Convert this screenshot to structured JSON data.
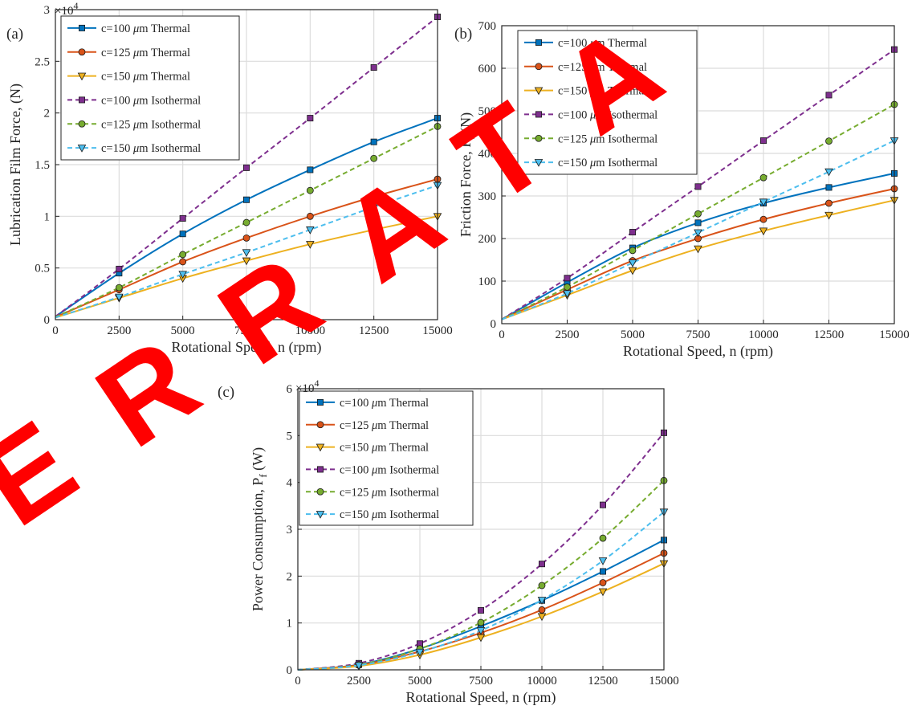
{
  "watermark": {
    "text": "ERRATA",
    "color": "#ff0000"
  },
  "chart_data": [
    {
      "type": "line",
      "panel_label": "(a)",
      "title": "",
      "xlabel": "Rotational Speed, n (rpm)",
      "ylabel": "Lubrication Film Force, (N)",
      "y_exponent": "4",
      "x_ticks": [
        "0",
        "2500",
        "5000",
        "7500",
        "10000",
        "12500",
        "15000"
      ],
      "y_ticks": [
        "0",
        "0.5",
        "1",
        "1.5",
        "2",
        "2.5",
        "3"
      ],
      "xlim": [
        0,
        15000
      ],
      "ylim": [
        0,
        30000
      ],
      "grid": true,
      "legend_position": "top-left",
      "x": [
        0,
        2500,
        5000,
        7500,
        10000,
        12500,
        15000
      ],
      "series": [
        {
          "name": "c=100 ",
          "suffix": " Thermal",
          "color": "#0072BD",
          "dash": "solid",
          "marker": "square",
          "values": [
            300,
            4500,
            8300,
            11600,
            14500,
            17200,
            19500
          ]
        },
        {
          "name": "c=125 ",
          "suffix": " Thermal",
          "color": "#D95319",
          "dash": "solid",
          "marker": "circle",
          "values": [
            250,
            2900,
            5600,
            7900,
            10000,
            11900,
            13600
          ]
        },
        {
          "name": "c=150 ",
          "suffix": " Thermal",
          "color": "#EDB120",
          "dash": "solid",
          "marker": "triangle",
          "values": [
            200,
            2100,
            4000,
            5700,
            7300,
            8700,
            10000
          ]
        },
        {
          "name": "c=100 ",
          "suffix": " Isothermal",
          "color": "#7E2F8E",
          "dash": "dashed",
          "marker": "square",
          "values": [
            300,
            4900,
            9800,
            14700,
            19500,
            24400,
            29300
          ]
        },
        {
          "name": "c=125 ",
          "suffix": " Isothermal",
          "color": "#77AC30",
          "dash": "dashed",
          "marker": "circle",
          "values": [
            250,
            3100,
            6300,
            9400,
            12500,
            15600,
            18700
          ]
        },
        {
          "name": "c=150 ",
          "suffix": " Isothermal",
          "color": "#4DBEEE",
          "dash": "dashed",
          "marker": "triangle",
          "values": [
            200,
            2200,
            4400,
            6500,
            8700,
            10900,
            13000
          ]
        }
      ]
    },
    {
      "type": "line",
      "panel_label": "(b)",
      "title": "",
      "xlabel": "Rotational Speed, n (rpm)",
      "ylabel": "Friction Force, F",
      "ylabel_sub": "f",
      "ylabel_tail": " (N)",
      "y_exponent": "",
      "x_ticks": [
        "0",
        "2500",
        "5000",
        "7500",
        "10000",
        "12500",
        "15000"
      ],
      "y_ticks": [
        "0",
        "100",
        "200",
        "300",
        "400",
        "500",
        "600",
        "700"
      ],
      "xlim": [
        0,
        15000
      ],
      "ylim": [
        0,
        700
      ],
      "grid": true,
      "legend_position": "top-left",
      "x": [
        0,
        2500,
        5000,
        7500,
        10000,
        12500,
        15000
      ],
      "series": [
        {
          "name": "c=100 ",
          "suffix": " Thermal",
          "color": "#0072BD",
          "dash": "solid",
          "marker": "square",
          "values": [
            10,
            97,
            178,
            237,
            283,
            320,
            353
          ]
        },
        {
          "name": "c=125 ",
          "suffix": " Thermal",
          "color": "#D95319",
          "dash": "solid",
          "marker": "circle",
          "values": [
            10,
            80,
            148,
            200,
            245,
            283,
            317
          ]
        },
        {
          "name": "c=150 ",
          "suffix": " Thermal",
          "color": "#EDB120",
          "dash": "solid",
          "marker": "triangle",
          "values": [
            10,
            67,
            125,
            176,
            218,
            255,
            290
          ]
        },
        {
          "name": "c=100 ",
          "suffix": " Isothermal",
          "color": "#7E2F8E",
          "dash": "dashed",
          "marker": "square",
          "values": [
            10,
            107,
            215,
            322,
            430,
            537,
            644
          ]
        },
        {
          "name": "c=125 ",
          "suffix": " Isothermal",
          "color": "#77AC30",
          "dash": "dashed",
          "marker": "circle",
          "values": [
            10,
            86,
            172,
            258,
            343,
            429,
            515
          ]
        },
        {
          "name": "c=150 ",
          "suffix": " Isothermal",
          "color": "#4DBEEE",
          "dash": "dashed",
          "marker": "triangle",
          "values": [
            10,
            71,
            143,
            214,
            286,
            357,
            430
          ]
        }
      ]
    },
    {
      "type": "line",
      "panel_label": "(c)",
      "title": "",
      "xlabel": "Rotational Speed, n (rpm)",
      "ylabel": "Power Consumption, P",
      "ylabel_sub": "f",
      "ylabel_tail": " (W)",
      "y_exponent": "4",
      "x_ticks": [
        "0",
        "2500",
        "5000",
        "7500",
        "10000",
        "12500",
        "15000"
      ],
      "y_ticks": [
        "0",
        "1",
        "2",
        "3",
        "4",
        "5",
        "6"
      ],
      "xlim": [
        0,
        15000
      ],
      "ylim": [
        0,
        60000
      ],
      "grid": true,
      "legend_position": "top-left",
      "x": [
        0,
        2500,
        5000,
        7500,
        10000,
        12500,
        15000
      ],
      "series": [
        {
          "name": "c=100 ",
          "suffix": " Thermal",
          "color": "#0072BD",
          "dash": "solid",
          "marker": "square",
          "values": [
            0,
            1100,
            4500,
            9300,
            14800,
            21000,
            27700
          ]
        },
        {
          "name": "c=125 ",
          "suffix": " Thermal",
          "color": "#D95319",
          "dash": "solid",
          "marker": "circle",
          "values": [
            0,
            1000,
            3900,
            7900,
            12800,
            18600,
            24900
          ]
        },
        {
          "name": "c=150 ",
          "suffix": " Thermal",
          "color": "#EDB120",
          "dash": "solid",
          "marker": "triangle",
          "values": [
            0,
            800,
            3200,
            6900,
            11400,
            16700,
            22700
          ]
        },
        {
          "name": "c=100 ",
          "suffix": " Isothermal",
          "color": "#7E2F8E",
          "dash": "dashed",
          "marker": "square",
          "values": [
            0,
            1400,
            5600,
            12700,
            22600,
            35200,
            50600
          ]
        },
        {
          "name": "c=125 ",
          "suffix": " Isothermal",
          "color": "#77AC30",
          "dash": "dashed",
          "marker": "circle",
          "values": [
            0,
            1100,
            4500,
            10100,
            18000,
            28100,
            40400
          ]
        },
        {
          "name": "c=150 ",
          "suffix": " Isothermal",
          "color": "#4DBEEE",
          "dash": "dashed",
          "marker": "triangle",
          "values": [
            0,
            950,
            3800,
            8400,
            14900,
            23300,
            33700
          ]
        }
      ]
    }
  ]
}
